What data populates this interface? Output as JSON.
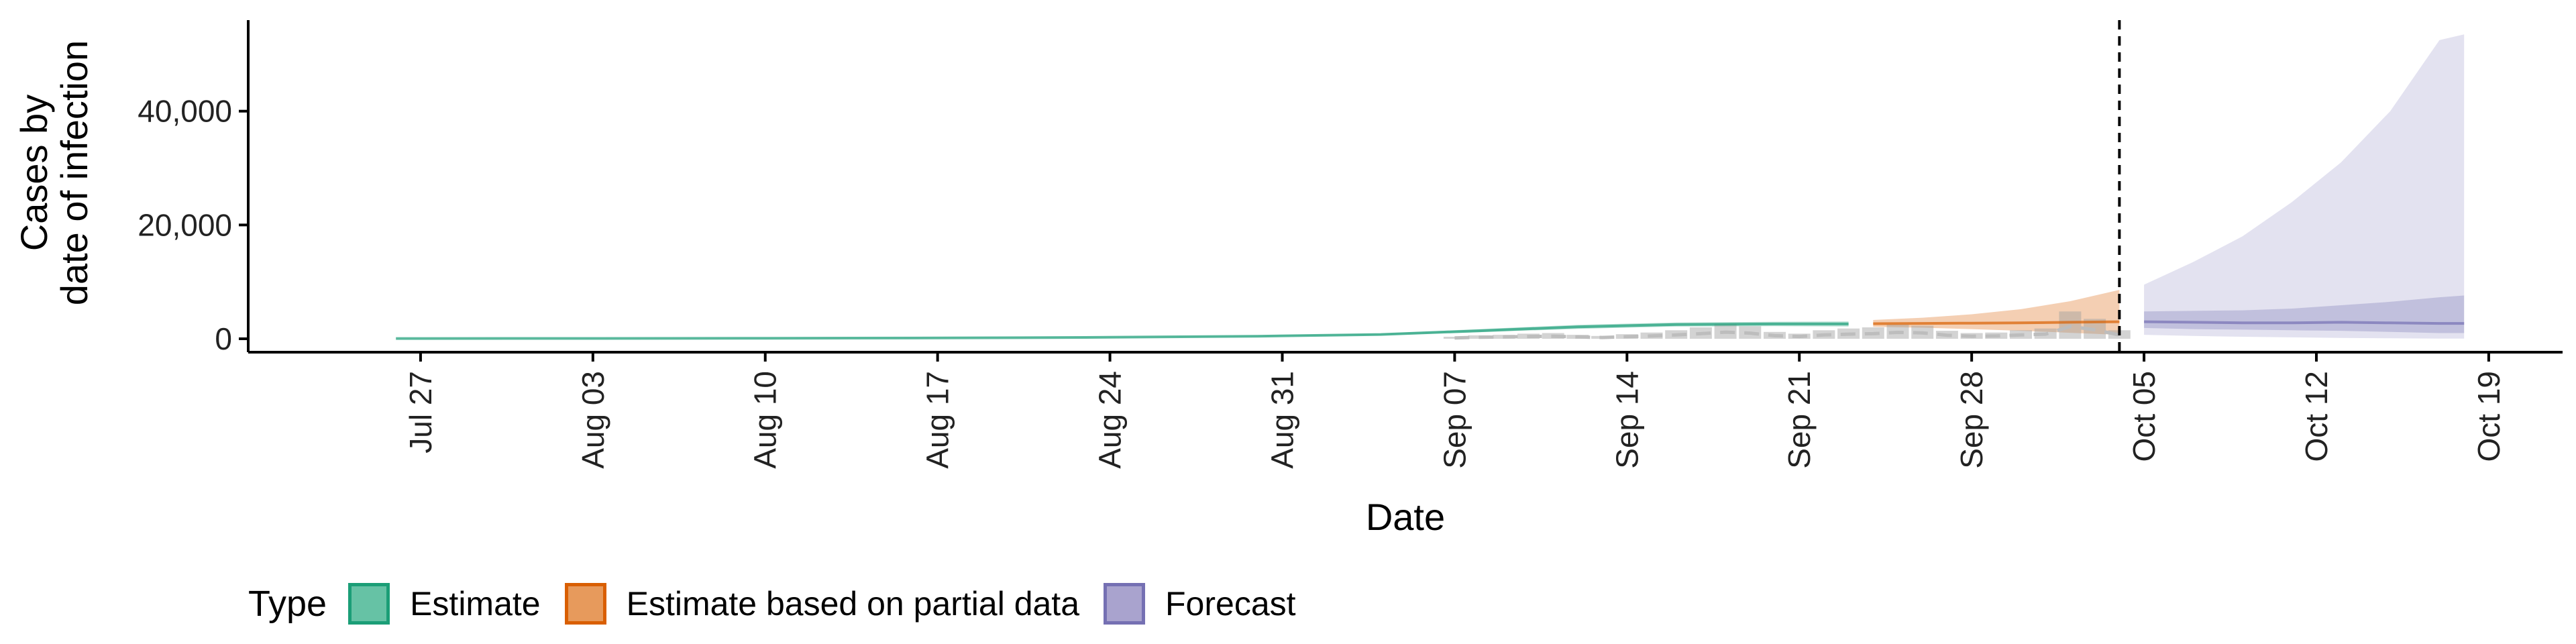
{
  "chart_data": {
    "type": "area",
    "xlabel": "Date",
    "ylabel_lines": [
      "Cases by",
      "date of infection"
    ],
    "ylim": [
      0,
      56000
    ],
    "yticks": [
      0,
      20000,
      40000
    ],
    "ytick_labels": [
      "0",
      "20,000",
      "40,000"
    ],
    "xticks": [
      "2020-07-27",
      "2020-08-03",
      "2020-08-10",
      "2020-08-17",
      "2020-08-24",
      "2020-08-31",
      "2020-09-07",
      "2020-09-14",
      "2020-09-21",
      "2020-09-28",
      "2020-10-05",
      "2020-10-12",
      "2020-10-19"
    ],
    "xtick_labels": [
      "Jul 27",
      "Aug 03",
      "Aug 10",
      "Aug 17",
      "Aug 24",
      "Aug 31",
      "Sep 07",
      "Sep 14",
      "Sep 21",
      "Sep 28",
      "Oct 05",
      "Oct 12",
      "Oct 19"
    ],
    "xlim": [
      "2020-07-20",
      "2020-10-22"
    ],
    "vline_date": "2020-10-04",
    "grid": false,
    "legend": {
      "title": "Type",
      "position": "bottom-left",
      "items": [
        {
          "label": "Estimate",
          "fill": "#66C2A5",
          "stroke": "#1B9E77"
        },
        {
          "label": "Estimate based on partial data",
          "fill": "#E79A5C",
          "stroke": "#D95F02"
        },
        {
          "label": "Forecast",
          "fill": "#A9A3CE",
          "stroke": "#7570B3"
        }
      ]
    },
    "colors": {
      "estimate": "#1B9E77",
      "partial": "#D95F02",
      "forecast": "#7570B3",
      "reported": "#9E9E9E",
      "reported_dash": "#BDBDBD",
      "vline": "#000000"
    },
    "series": [
      {
        "name": "Estimate",
        "from": "2020-07-26",
        "x": [
          "2020-07-26",
          "2020-08-02",
          "2020-08-09",
          "2020-08-16",
          "2020-08-23",
          "2020-08-30",
          "2020-09-04",
          "2020-09-08",
          "2020-09-12",
          "2020-09-16",
          "2020-09-20",
          "2020-09-23"
        ],
        "median": [
          50,
          60,
          80,
          130,
          230,
          450,
          750,
          1400,
          2100,
          2500,
          2600,
          2600
        ],
        "lower": [
          30,
          40,
          60,
          100,
          180,
          380,
          620,
          1150,
          1750,
          2150,
          2200,
          2150
        ],
        "upper": [
          80,
          90,
          120,
          180,
          300,
          560,
          920,
          1700,
          2450,
          2850,
          3000,
          3050
        ]
      },
      {
        "name": "Estimate based on partial data",
        "x": [
          "2020-09-24",
          "2020-09-26",
          "2020-09-28",
          "2020-09-30",
          "2020-10-02",
          "2020-10-04"
        ],
        "median": [
          2650,
          2700,
          2750,
          2800,
          2900,
          3000
        ],
        "lower": [
          2100,
          1950,
          1700,
          1400,
          1050,
          700
        ],
        "upper": [
          3300,
          3700,
          4300,
          5200,
          6600,
          8600
        ]
      },
      {
        "name": "Forecast",
        "x": [
          "2020-10-05",
          "2020-10-07",
          "2020-10-09",
          "2020-10-11",
          "2020-10-13",
          "2020-10-15",
          "2020-10-17",
          "2020-10-18"
        ],
        "median": [
          3000,
          2900,
          2800,
          2800,
          2900,
          2800,
          2700,
          2700
        ],
        "lower_50": [
          1900,
          1700,
          1600,
          1500,
          1400,
          1200,
          1000,
          1000
        ],
        "upper_50": [
          4800,
          4900,
          5000,
          5300,
          5900,
          6500,
          7300,
          7600
        ],
        "lower_90": [
          700,
          500,
          350,
          250,
          150,
          80,
          40,
          30
        ],
        "upper_90": [
          9500,
          13500,
          18000,
          24000,
          31000,
          40000,
          52500,
          53500
        ]
      }
    ],
    "reported_cases": {
      "name": "Reported cases",
      "x": [
        "2020-09-07",
        "2020-09-08",
        "2020-09-09",
        "2020-09-10",
        "2020-09-11",
        "2020-09-12",
        "2020-09-13",
        "2020-09-14",
        "2020-09-15",
        "2020-09-16",
        "2020-09-17",
        "2020-09-18",
        "2020-09-19",
        "2020-09-20",
        "2020-09-21",
        "2020-09-22",
        "2020-09-23",
        "2020-09-24",
        "2020-09-25",
        "2020-09-26",
        "2020-09-27",
        "2020-09-28",
        "2020-09-29",
        "2020-09-30",
        "2020-10-01",
        "2020-10-02",
        "2020-10-03",
        "2020-10-04"
      ],
      "values": [
        350,
        600,
        700,
        900,
        1000,
        700,
        500,
        800,
        1100,
        1500,
        2000,
        2600,
        2200,
        1200,
        900,
        1500,
        1800,
        2000,
        2500,
        2300,
        1400,
        1000,
        1100,
        1500,
        1800,
        4800,
        3500,
        1500
      ]
    }
  }
}
